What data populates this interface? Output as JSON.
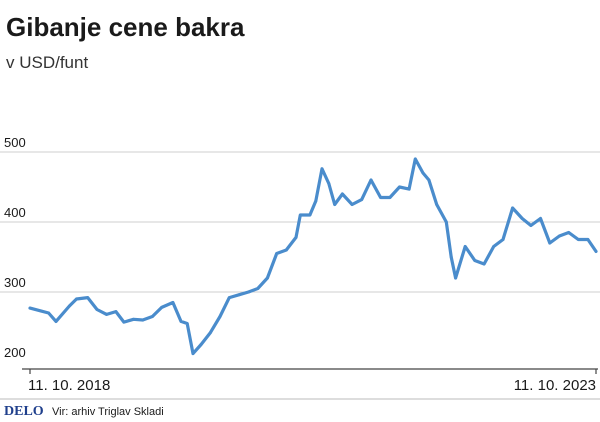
{
  "chart_data": {
    "type": "line",
    "title": "Gibanje cene bakra",
    "subtitle": "v USD/funt",
    "xlabel": "",
    "ylabel": "",
    "ylim": [
      200,
      500
    ],
    "yticks": [
      200,
      300,
      400,
      500
    ],
    "x_start": "2018-10-11",
    "x_end": "2023-10-11",
    "x_tick_labels": [
      "11. 10. 2018",
      "11. 10. 2023"
    ],
    "grid": true,
    "series": [
      {
        "color": "#4a8ccc",
        "points": [
          [
            "2018-10-11",
            277
          ],
          [
            "2018-11-15",
            273
          ],
          [
            "2018-12-10",
            270
          ],
          [
            "2019-01-03",
            258
          ],
          [
            "2019-02-15",
            280
          ],
          [
            "2019-03-10",
            290
          ],
          [
            "2019-04-15",
            292
          ],
          [
            "2019-05-15",
            275
          ],
          [
            "2019-06-15",
            268
          ],
          [
            "2019-07-15",
            272
          ],
          [
            "2019-08-10",
            257
          ],
          [
            "2019-09-10",
            261
          ],
          [
            "2019-10-10",
            260
          ],
          [
            "2019-11-10",
            265
          ],
          [
            "2019-12-10",
            278
          ],
          [
            "2020-01-15",
            285
          ],
          [
            "2020-02-10",
            258
          ],
          [
            "2020-03-01",
            255
          ],
          [
            "2020-03-20",
            212
          ],
          [
            "2020-04-15",
            225
          ],
          [
            "2020-05-15",
            242
          ],
          [
            "2020-06-15",
            265
          ],
          [
            "2020-07-15",
            292
          ],
          [
            "2020-08-15",
            296
          ],
          [
            "2020-09-15",
            300
          ],
          [
            "2020-10-15",
            305
          ],
          [
            "2020-11-15",
            320
          ],
          [
            "2020-12-15",
            355
          ],
          [
            "2021-01-15",
            360
          ],
          [
            "2021-02-15",
            378
          ],
          [
            "2021-03-01",
            410
          ],
          [
            "2021-04-01",
            410
          ],
          [
            "2021-04-20",
            430
          ],
          [
            "2021-05-10",
            476
          ],
          [
            "2021-06-01",
            455
          ],
          [
            "2021-06-20",
            425
          ],
          [
            "2021-07-15",
            440
          ],
          [
            "2021-08-15",
            425
          ],
          [
            "2021-09-15",
            432
          ],
          [
            "2021-10-15",
            460
          ],
          [
            "2021-11-15",
            435
          ],
          [
            "2021-12-15",
            435
          ],
          [
            "2022-01-15",
            450
          ],
          [
            "2022-02-15",
            447
          ],
          [
            "2022-03-07",
            490
          ],
          [
            "2022-04-01",
            470
          ],
          [
            "2022-04-20",
            460
          ],
          [
            "2022-05-15",
            425
          ],
          [
            "2022-06-15",
            400
          ],
          [
            "2022-07-01",
            350
          ],
          [
            "2022-07-15",
            320
          ],
          [
            "2022-08-15",
            365
          ],
          [
            "2022-09-15",
            345
          ],
          [
            "2022-10-15",
            340
          ],
          [
            "2022-11-15",
            365
          ],
          [
            "2022-12-15",
            375
          ],
          [
            "2023-01-15",
            420
          ],
          [
            "2023-02-15",
            405
          ],
          [
            "2023-03-15",
            395
          ],
          [
            "2023-04-15",
            405
          ],
          [
            "2023-05-15",
            370
          ],
          [
            "2023-06-15",
            380
          ],
          [
            "2023-07-15",
            385
          ],
          [
            "2023-08-15",
            375
          ],
          [
            "2023-09-15",
            375
          ],
          [
            "2023-10-11",
            358
          ]
        ]
      }
    ]
  },
  "footer": {
    "brand": "DELO",
    "source": "Vir: arhiv Triglav Skladi"
  },
  "colors": {
    "line": "#4a8ccc",
    "grid": "#cfcfcf",
    "axis": "#444444",
    "text": "#1a1a1a",
    "brand": "#1f3f8c"
  }
}
